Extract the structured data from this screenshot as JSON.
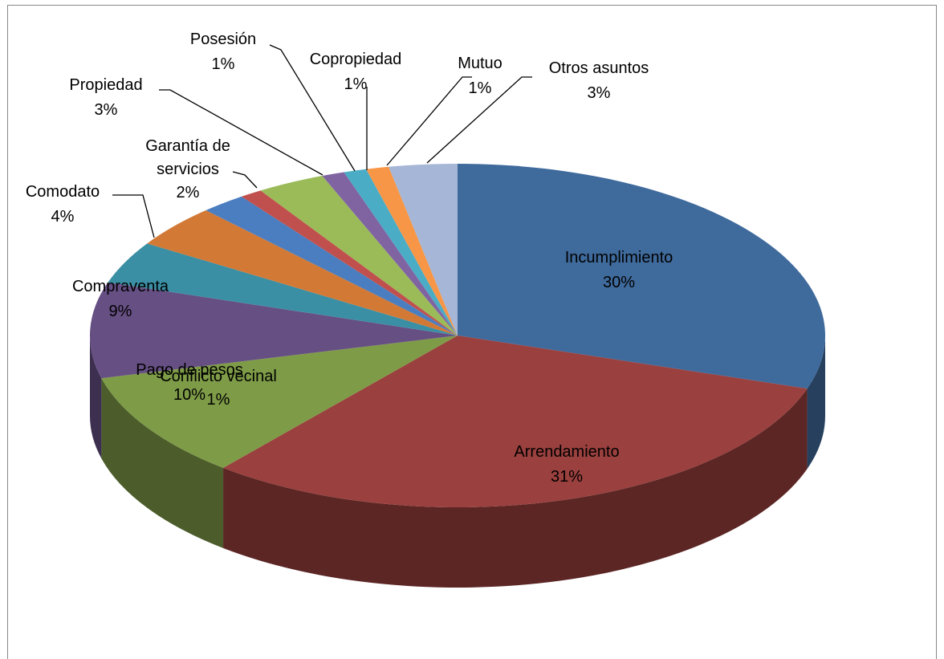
{
  "chart_data": {
    "type": "pie3d",
    "categories": [
      "Incumplimiento",
      "Arrendamiento",
      "Pago de pesos",
      "Compraventa",
      "Comodato",
      null,
      "Garantía de servicios",
      "Conflicto vecinal",
      "Propiedad",
      "Posesión",
      "Copropiedad",
      "Mutuo",
      "Otros asuntos"
    ],
    "values": [
      30,
      31,
      10,
      9,
      4,
      4,
      2,
      1,
      3,
      1,
      1,
      1,
      3
    ],
    "value_labels": [
      "30%",
      "31%",
      "10%",
      "9%",
      "4%",
      null,
      "2%",
      "1%",
      "3%",
      "1%",
      "1%",
      "1%",
      "3%"
    ],
    "colors": [
      "#3f6a9c",
      "#9a403e",
      "#7e9b47",
      "#664f83",
      "#3a8fa4",
      "#d27936",
      "#4a7ec0",
      "#c0504d",
      "#9bbb59",
      "#8064a2",
      "#4bacc6",
      "#f79646",
      "#a5b6d6"
    ]
  }
}
